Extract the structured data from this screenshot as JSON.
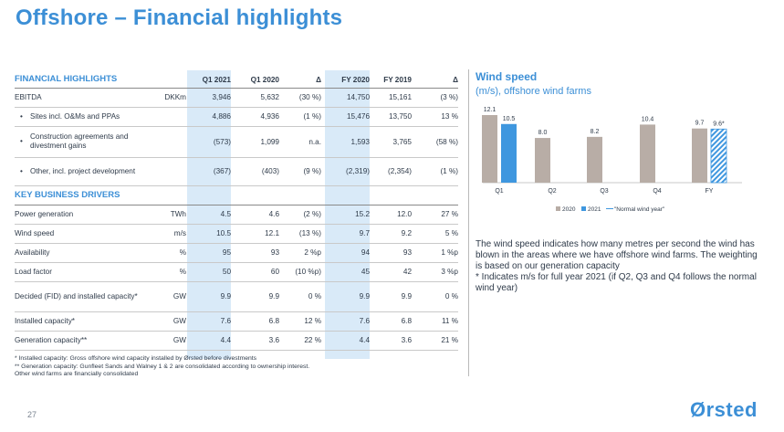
{
  "title": "Offshore – Financial highlights",
  "table": {
    "section1": "FINANCIAL HIGHLIGHTS",
    "columns": [
      "Q1 2021",
      "Q1 2020",
      "Δ",
      "FY 2020",
      "FY 2019",
      "Δ"
    ],
    "section2": "KEY BUSINESS DRIVERS",
    "rows": [
      {
        "label": "EBITDA",
        "unit": "DKKm",
        "v": [
          "3,946",
          "5,632",
          "(30 %)",
          "14,750",
          "15,161",
          "(3 %)"
        ]
      },
      {
        "label": "Sites incl. O&Ms and PPAs",
        "unit": "",
        "v": [
          "4,886",
          "4,936",
          "(1 %)",
          "15,476",
          "13,750",
          "13 %"
        ]
      },
      {
        "label": "Construction agreements and divestment gains",
        "unit": "",
        "v": [
          "(573)",
          "1,099",
          "n.a.",
          "1,593",
          "3,765",
          "(58 %)"
        ]
      },
      {
        "label": "Other, incl. project development",
        "unit": "",
        "v": [
          "(367)",
          "(403)",
          "(9 %)",
          "(2,319)",
          "(2,354)",
          "(1 %)"
        ]
      },
      {
        "label": "Power generation",
        "unit": "TWh",
        "v": [
          "4.5",
          "4.6",
          "(2 %)",
          "15.2",
          "12.0",
          "27 %"
        ]
      },
      {
        "label": "Wind speed",
        "unit": "m/s",
        "v": [
          "10.5",
          "12.1",
          "(13 %)",
          "9.7",
          "9.2",
          "5 %"
        ]
      },
      {
        "label": "Availability",
        "unit": "%",
        "v": [
          "95",
          "93",
          "2 %p",
          "94",
          "93",
          "1 %p"
        ]
      },
      {
        "label": "Load factor",
        "unit": "%",
        "v": [
          "50",
          "60",
          "(10 %p)",
          "45",
          "42",
          "3 %p"
        ]
      },
      {
        "label": "Decided (FID) and installed capacity*",
        "unit": "GW",
        "v": [
          "9.9",
          "9.9",
          "0 %",
          "9.9",
          "9.9",
          "0 %"
        ]
      },
      {
        "label": "Installed capacity*",
        "unit": "GW",
        "v": [
          "7.6",
          "6.8",
          "12 %",
          "7.6",
          "6.8",
          "11 %"
        ]
      },
      {
        "label": "Generation capacity**",
        "unit": "GW",
        "v": [
          "4.4",
          "3.6",
          "22 %",
          "4.4",
          "3.6",
          "21 %"
        ]
      }
    ]
  },
  "footnotes": [
    "* Installed capacity: Gross offshore wind capacity installed by Ørsted before divestments",
    "** Generation capacity: Gunfleet Sands and Walney 1 & 2 are consolidated according to ownership interest.",
    "Other wind farms are financially consolidated"
  ],
  "page_number": "27",
  "logo": "Ørsted",
  "wind": {
    "title": "Wind speed",
    "subtitle": "(m/s), offshore wind farms",
    "description": "The wind speed indicates how many metres per second the wind has blown in the areas where we have offshore wind farms. The weighting is based on our generation capacity\n* Indicates m/s for full year 2021 (if Q2, Q3 and Q4 follows the normal wind year)"
  },
  "chart_data": {
    "type": "bar",
    "categories": [
      "Q1",
      "Q2",
      "Q3",
      "Q4",
      "FY"
    ],
    "series": [
      {
        "name": "2020",
        "values": [
          12.1,
          8.0,
          8.2,
          10.4,
          9.7
        ],
        "color": "#b8ada6"
      },
      {
        "name": "2021",
        "values": [
          10.5,
          null,
          null,
          null,
          null
        ],
        "color": "#3f97df"
      },
      {
        "name": "\"Normal wind year\"",
        "values": [
          null,
          null,
          null,
          null,
          9.6
        ],
        "color": "#3f97df"
      }
    ],
    "data_labels": [
      [
        "12.1",
        "8.0",
        "8.2",
        "10.4",
        "9.7"
      ],
      [
        "10.5",
        "",
        "",
        "",
        ""
      ],
      [
        "",
        "",
        "",
        "",
        "9.6*"
      ]
    ],
    "legend": [
      "2020",
      "2021",
      "\"Normal wind year\""
    ],
    "ylim": [
      0,
      13
    ],
    "legend_position": "bottom"
  }
}
